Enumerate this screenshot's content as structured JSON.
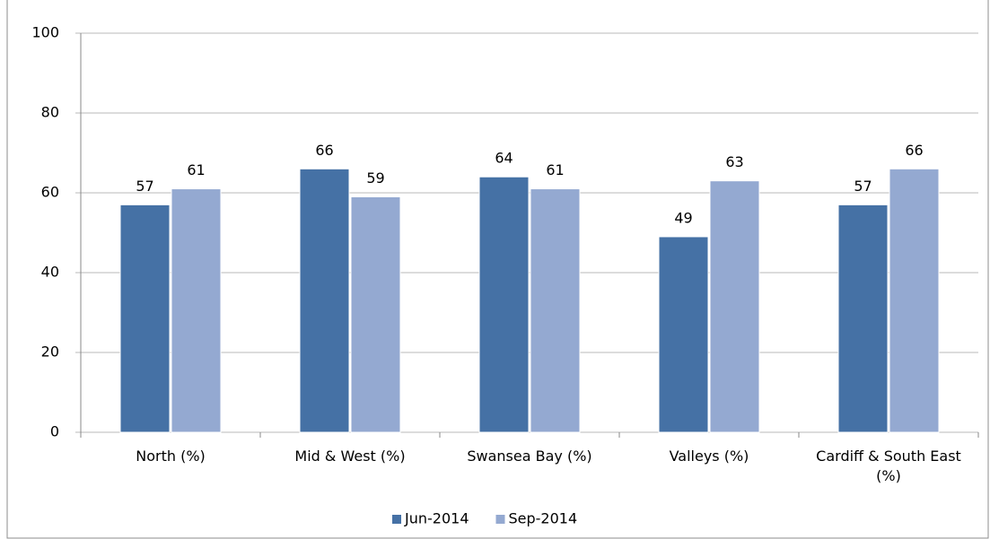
{
  "chart_data": {
    "type": "bar",
    "categories": [
      "North (%)",
      "Mid & West (%)",
      "Swansea Bay (%)",
      "Valleys (%)",
      "Cardiff & South East (%)"
    ],
    "series": [
      {
        "name": "Jun-2014",
        "color": "#4571a5",
        "values": [
          57,
          66,
          64,
          49,
          57
        ]
      },
      {
        "name": "Sep-2014",
        "color": "#94a9d1",
        "values": [
          61,
          59,
          61,
          63,
          66
        ]
      }
    ],
    "ylim": [
      0,
      100
    ],
    "yticks": [
      0,
      20,
      40,
      60,
      80,
      100
    ],
    "grid": true,
    "legend": "bottom"
  }
}
